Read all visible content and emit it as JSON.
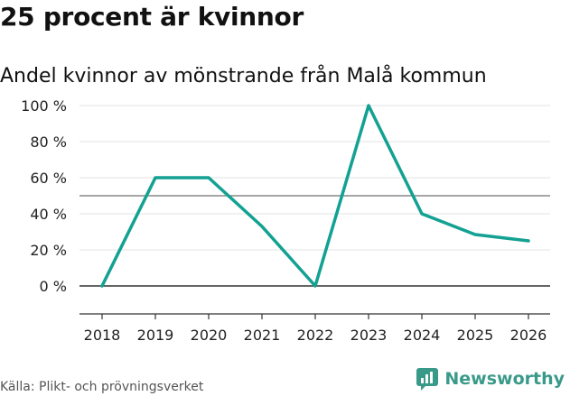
{
  "header": {
    "title": "25 procent är kvinnor",
    "subtitle": "Andel kvinnor av mönstrande från Malå kommun"
  },
  "footer": {
    "source": "Källa: Plikt- och prövningsverket",
    "brand": "Newsworthy",
    "brand_icon": "newsworthy-logo-icon"
  },
  "colors": {
    "line": "#12a192",
    "grid": "#e3e3e3",
    "reference": "#888888",
    "zero": "#333333",
    "brand": "#3a9a8a"
  },
  "chart_data": {
    "type": "line",
    "title": "25 procent är kvinnor",
    "subtitle": "Andel kvinnor av mönstrande från Malå kommun",
    "xlabel": "",
    "ylabel": "",
    "x": [
      2018,
      2019,
      2020,
      2021,
      2022,
      2023,
      2024,
      2025,
      2026
    ],
    "x_tick_labels": [
      "2018",
      "2019",
      "2020",
      "2021",
      "2022",
      "2023",
      "2024",
      "2025",
      "2026"
    ],
    "series": [
      {
        "name": "Andel kvinnor",
        "values": [
          0,
          60,
          60,
          33,
          0,
          100,
          40,
          28.5,
          25
        ]
      }
    ],
    "y_ticks": [
      0,
      20,
      40,
      60,
      80,
      100
    ],
    "y_tick_labels": [
      "0 %",
      "20 %",
      "40 %",
      "60 %",
      "80 %",
      "100 %"
    ],
    "ylim": [
      -16,
      100
    ],
    "reference_line": 50,
    "grid": true,
    "legend": "none"
  }
}
